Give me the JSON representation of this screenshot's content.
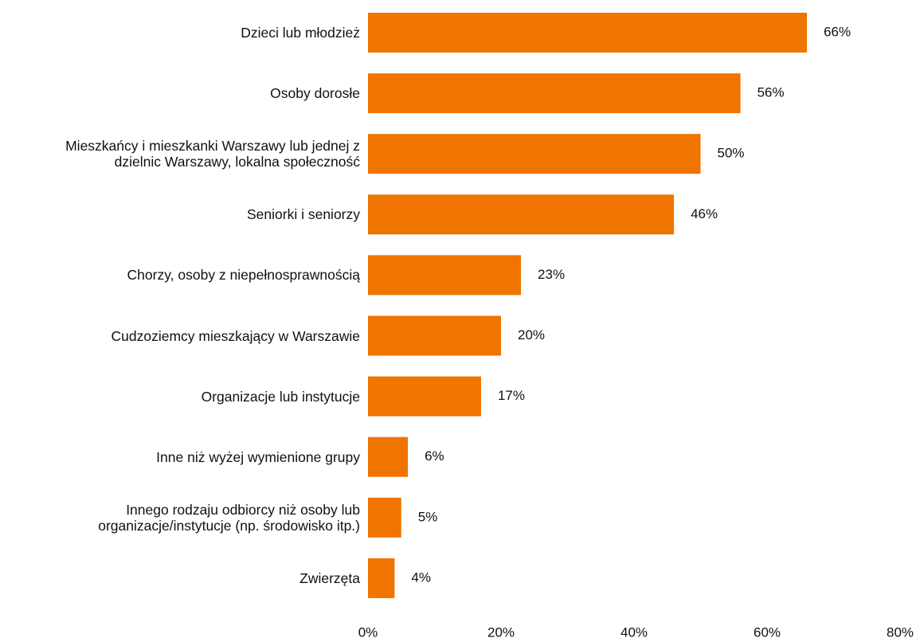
{
  "chart_data": {
    "type": "bar",
    "orientation": "horizontal",
    "categories": [
      "Dzieci lub młodzież",
      "Osoby dorosłe",
      "Mieszkańcy i mieszkanki Warszawy lub jednej z\ndzielnic Warszawy, lokalna społeczność",
      "Seniorki i seniorzy",
      "Chorzy, osoby z niepełnosprawnością",
      "Cudzoziemcy mieszkający w Warszawie",
      "Organizacje lub instytucje",
      "Inne niż wyżej wymienione grupy",
      "Innego rodzaju odbiorcy niż osoby lub\norganizacje/instytucje (np. środowisko itp.)",
      "Zwierzęta"
    ],
    "values": [
      66,
      56,
      50,
      46,
      23,
      20,
      17,
      6,
      5,
      4
    ],
    "value_labels": [
      "66%",
      "56%",
      "50%",
      "46%",
      "23%",
      "20%",
      "17%",
      "6%",
      "5%",
      "4%"
    ],
    "color": "#ef7400",
    "xlim": [
      0,
      80
    ],
    "xticks": [
      {
        "value": 0,
        "label": "0%"
      },
      {
        "value": 20,
        "label": "20%"
      },
      {
        "value": 40,
        "label": "40%"
      },
      {
        "value": 60,
        "label": "60%"
      },
      {
        "value": 80,
        "label": "80%"
      }
    ],
    "grid": false
  }
}
